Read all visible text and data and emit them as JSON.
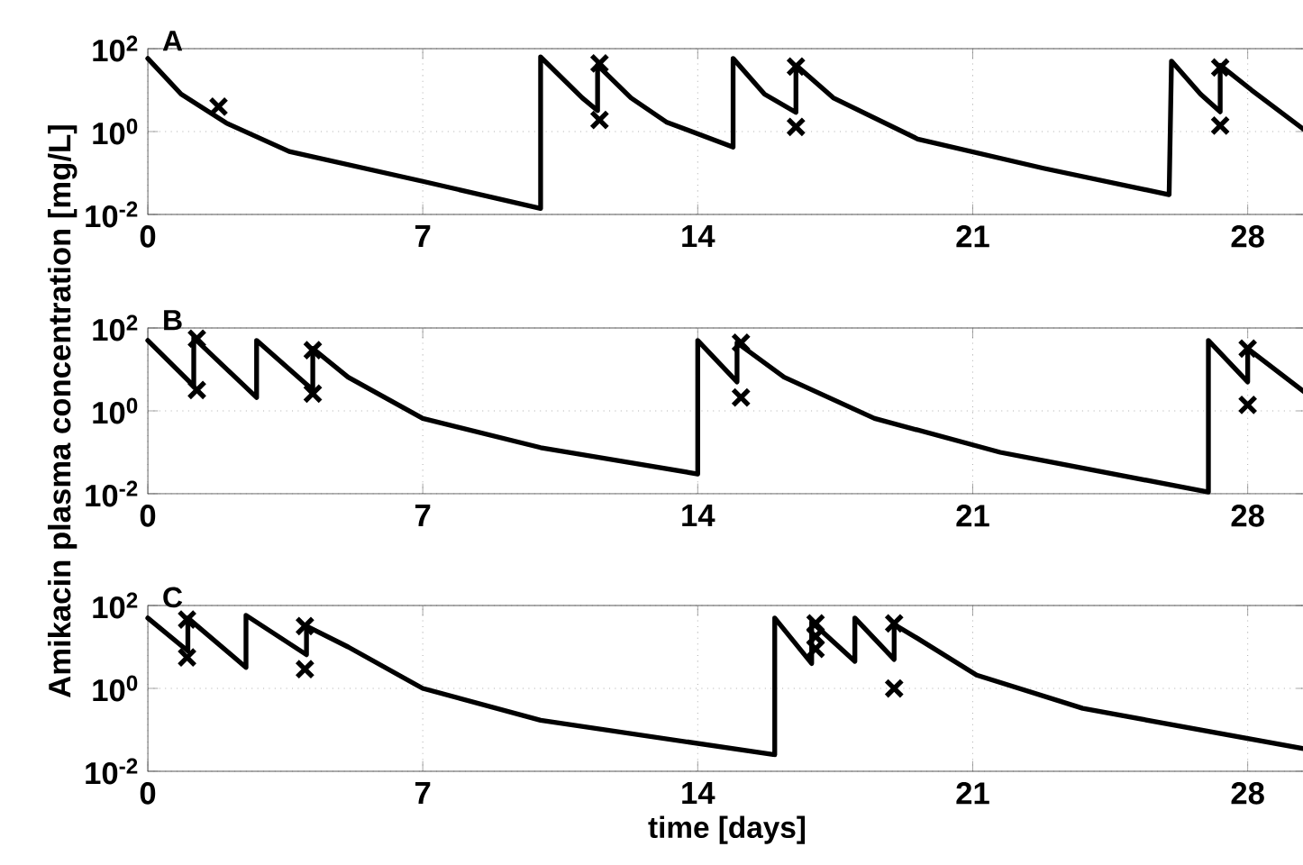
{
  "chart_data": [
    {
      "type": "line",
      "title": "A",
      "log": "y",
      "grid": true,
      "xlim": [
        0,
        29.5
      ],
      "ylim": [
        0.01,
        100
      ],
      "xticks": [
        0,
        7,
        14,
        21,
        28
      ],
      "yticks": [
        {
          "value": 0.01,
          "label": "10$^{-2}$"
        },
        {
          "value": 1,
          "label": "10$^{0}$"
        },
        {
          "value": 100,
          "label": "10$^{2}$"
        }
      ],
      "series": [
        {
          "color": "#000000",
          "marker": "none",
          "line_style": "solid",
          "x": [
            0,
            0.85,
            2.0,
            3.6,
            7.0,
            10.0,
            10.0,
            11.06,
            11.45,
            11.45,
            12.3,
            13.2,
            14.9,
            14.9,
            15.7,
            16.5,
            16.5,
            17.45,
            19.6,
            22.8,
            26.0,
            26.06,
            26.8,
            27.3,
            27.3,
            28.1,
            29.5
          ],
          "values": [
            58,
            8,
            1.6,
            0.33,
            0.063,
            0.014,
            63,
            6.5,
            3.2,
            40,
            6.5,
            1.7,
            0.42,
            58,
            8,
            2.9,
            40,
            6.5,
            0.66,
            0.13,
            0.03,
            50,
            8,
            3,
            40,
            10,
            1.0
          ]
        },
        {
          "type": "scatter",
          "color": "#000000",
          "marker": "cross",
          "x": [
            1.8,
            11.5,
            11.5,
            16.5,
            16.5,
            27.3,
            27.3
          ],
          "values": [
            4.0,
            44,
            1.9,
            37,
            1.3,
            35,
            1.4
          ]
        }
      ]
    },
    {
      "type": "line",
      "title": "B",
      "ylabel": "Amikacin plasma concentration [mg/L]",
      "log": "y",
      "grid": true,
      "xlim": [
        0,
        29.5
      ],
      "ylim": [
        0.01,
        100
      ],
      "xticks": [
        0,
        7,
        14,
        21,
        28
      ],
      "yticks": [
        {
          "value": 0.01,
          "label": "10$^{-2}$"
        },
        {
          "value": 1,
          "label": "10$^{0}$"
        },
        {
          "value": 100,
          "label": "10$^{2}$"
        }
      ],
      "series": [
        {
          "color": "#000000",
          "marker": "none",
          "line_style": "solid",
          "x": [
            0,
            1.17,
            1.17,
            2.77,
            2.77,
            4.2,
            4.2,
            5.1,
            7.0,
            10.0,
            14.0,
            14.0,
            15.0,
            15.0,
            16.2,
            18.5,
            21.7,
            27.0,
            27.0,
            28.0,
            28.0,
            29.5
          ],
          "values": [
            50,
            4,
            58,
            2.1,
            50,
            3.2,
            32,
            6.5,
            0.66,
            0.13,
            0.03,
            50,
            5,
            44,
            6.5,
            0.66,
            0.1,
            0.011,
            50,
            5,
            32,
            2.6
          ]
        },
        {
          "type": "scatter",
          "color": "#000000",
          "marker": "cross",
          "x": [
            1.25,
            1.25,
            4.2,
            4.2,
            15.1,
            15.1,
            28.0,
            28.0
          ],
          "values": [
            55,
            3.2,
            29,
            2.6,
            44,
            2.1,
            32,
            1.4
          ]
        }
      ]
    },
    {
      "type": "line",
      "title": "C",
      "xlabel": "time [days]",
      "log": "y",
      "grid": true,
      "xlim": [
        0,
        29.5
      ],
      "ylim": [
        0.01,
        100
      ],
      "xticks": [
        0,
        7,
        14,
        21,
        28
      ],
      "yticks": [
        {
          "value": 0.01,
          "label": "10$^{-2}$"
        },
        {
          "value": 1,
          "label": "10$^{0}$"
        },
        {
          "value": 100,
          "label": "10$^{2}$"
        }
      ],
      "series": [
        {
          "color": "#000000",
          "marker": "none",
          "line_style": "solid",
          "x": [
            0,
            1.02,
            1.02,
            2.5,
            2.5,
            4.04,
            4.04,
            5.1,
            7.0,
            10.0,
            15.96,
            15.96,
            16.9,
            16.9,
            18.0,
            18.0,
            19.0,
            19.0,
            19.6,
            21.1,
            23.8,
            29.5
          ],
          "values": [
            50,
            8,
            50,
            3.2,
            58,
            6.5,
            32,
            10,
            1.0,
            0.17,
            0.025,
            50,
            4,
            40,
            4.5,
            50,
            5,
            35,
            16,
            2.1,
            0.33,
            0.034
          ]
        },
        {
          "type": "scatter",
          "color": "#000000",
          "marker": "cross",
          "x": [
            1.0,
            1.0,
            4.0,
            4.0,
            17.0,
            17.0,
            17.0,
            19.0,
            19.0
          ],
          "values": [
            46,
            5.6,
            32,
            2.9,
            37,
            18,
            9,
            37,
            1.0
          ]
        }
      ]
    }
  ]
}
